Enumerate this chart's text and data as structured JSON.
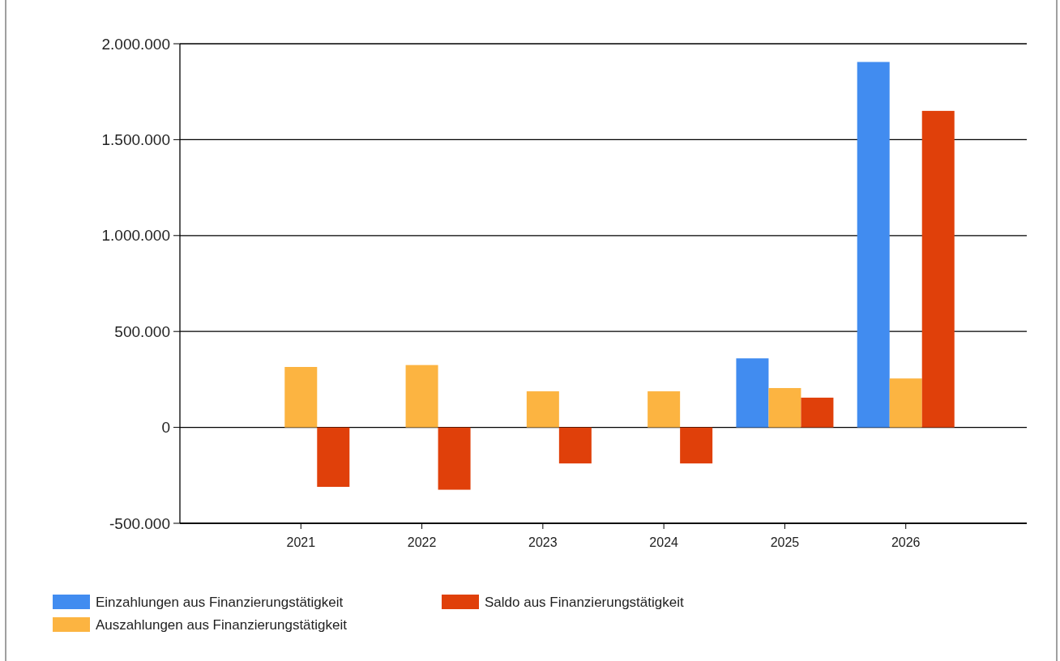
{
  "chart_data": {
    "type": "bar",
    "categories": [
      "2021",
      "2022",
      "2023",
      "2024",
      "2025",
      "2026"
    ],
    "series": [
      {
        "name": "Einzahlungen aus Finanzierungstätigkeit",
        "color": "#418cf0",
        "values": [
          null,
          null,
          null,
          null,
          360000,
          1905000
        ]
      },
      {
        "name": "Auszahlungen aus Finanzierungstätigkeit",
        "color": "#fcb441",
        "values": [
          315000,
          325000,
          188000,
          188000,
          205000,
          255000
        ]
      },
      {
        "name": "Saldo aus Finanzierungstätigkeit",
        "color": "#e0400a",
        "values": [
          -310000,
          -325000,
          -188000,
          -188000,
          155000,
          1650000
        ]
      }
    ],
    "ylim": [
      -500000,
      2000000
    ],
    "yticks": [
      {
        "value": -500000,
        "label": "-500.000"
      },
      {
        "value": 0,
        "label": "0"
      },
      {
        "value": 500000,
        "label": "500.000"
      },
      {
        "value": 1000000,
        "label": "1.000.000"
      },
      {
        "value": 1500000,
        "label": "1.500.000"
      },
      {
        "value": 2000000,
        "label": "2.000.000"
      }
    ],
    "grid": "y",
    "legend": "bottom left"
  }
}
